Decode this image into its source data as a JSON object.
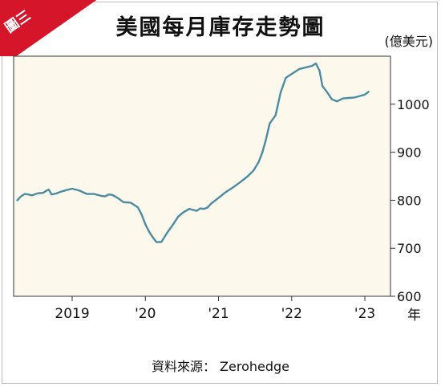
{
  "badge": "圖三",
  "title": "美國每月庫存走勢圖",
  "unit_label": "(億美元)",
  "x_unit_label": "年",
  "source": "資料來源： Zerohedge",
  "colors": {
    "plot_bg": "#fdf8ec",
    "line": "#4b8ca3",
    "badge": "#d5162a"
  },
  "chart_data": {
    "type": "line",
    "title": "美國每月庫存走勢圖",
    "xlabel": "年",
    "ylabel": "(億美元)",
    "ylim": [
      600,
      1100
    ],
    "xlim": [
      2018.2,
      2023.35
    ],
    "yticks": [
      600,
      700,
      800,
      900,
      1000
    ],
    "xticks": [
      {
        "x": 2019.0,
        "label": "2019"
      },
      {
        "x": 2020.0,
        "label": "'20"
      },
      {
        "x": 2021.0,
        "label": "'21"
      },
      {
        "x": 2022.0,
        "label": "'22"
      },
      {
        "x": 2023.0,
        "label": "'23"
      }
    ],
    "grid": false,
    "series": [
      {
        "values": [
          [
            2018.25,
            800
          ],
          [
            2018.3,
            808
          ],
          [
            2018.35,
            813
          ],
          [
            2018.4,
            812
          ],
          [
            2018.45,
            810
          ],
          [
            2018.5,
            813
          ],
          [
            2018.55,
            815
          ],
          [
            2018.6,
            815
          ],
          [
            2018.65,
            820
          ],
          [
            2018.68,
            822
          ],
          [
            2018.72,
            812
          ],
          [
            2018.78,
            814
          ],
          [
            2018.85,
            818
          ],
          [
            2018.92,
            821
          ],
          [
            2019.0,
            824
          ],
          [
            2019.1,
            820
          ],
          [
            2019.2,
            813
          ],
          [
            2019.3,
            813
          ],
          [
            2019.4,
            809
          ],
          [
            2019.45,
            808
          ],
          [
            2019.5,
            812
          ],
          [
            2019.55,
            811
          ],
          [
            2019.62,
            805
          ],
          [
            2019.7,
            796
          ],
          [
            2019.8,
            795
          ],
          [
            2019.9,
            785
          ],
          [
            2019.95,
            770
          ],
          [
            2020.0,
            750
          ],
          [
            2020.05,
            735
          ],
          [
            2020.1,
            723
          ],
          [
            2020.15,
            713
          ],
          [
            2020.22,
            713
          ],
          [
            2020.3,
            733
          ],
          [
            2020.38,
            750
          ],
          [
            2020.45,
            766
          ],
          [
            2020.52,
            775
          ],
          [
            2020.6,
            782
          ],
          [
            2020.65,
            780
          ],
          [
            2020.7,
            778
          ],
          [
            2020.75,
            783
          ],
          [
            2020.8,
            782
          ],
          [
            2020.85,
            785
          ],
          [
            2020.9,
            793
          ],
          [
            2021.0,
            805
          ],
          [
            2021.1,
            817
          ],
          [
            2021.2,
            827
          ],
          [
            2021.3,
            838
          ],
          [
            2021.4,
            850
          ],
          [
            2021.48,
            862
          ],
          [
            2021.55,
            880
          ],
          [
            2021.6,
            900
          ],
          [
            2021.65,
            928
          ],
          [
            2021.7,
            960
          ],
          [
            2021.78,
            977
          ],
          [
            2021.85,
            1025
          ],
          [
            2021.92,
            1055
          ],
          [
            2022.0,
            1063
          ],
          [
            2022.1,
            1073
          ],
          [
            2022.2,
            1077
          ],
          [
            2022.28,
            1080
          ],
          [
            2022.33,
            1085
          ],
          [
            2022.38,
            1070
          ],
          [
            2022.42,
            1038
          ],
          [
            2022.48,
            1026
          ],
          [
            2022.55,
            1010
          ],
          [
            2022.62,
            1006
          ],
          [
            2022.7,
            1012
          ],
          [
            2022.78,
            1013
          ],
          [
            2022.86,
            1014
          ],
          [
            2022.93,
            1017
          ],
          [
            2023.0,
            1020
          ],
          [
            2023.05,
            1026
          ]
        ]
      }
    ]
  }
}
